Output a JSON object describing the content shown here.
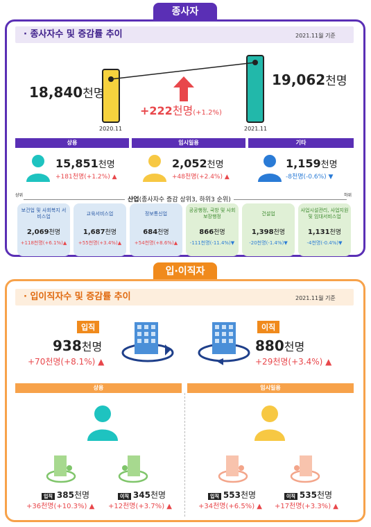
{
  "top": {
    "tab": "종사자",
    "title": "종사자수 및 증감률 추이",
    "asof": "2021.11월 기준",
    "left_value": "18,840",
    "right_value": "19,062",
    "unit": "천명",
    "left_year": "2020.11",
    "right_year": "2021.11",
    "change_value": "+222",
    "change_pct": "(+1.2%)",
    "groups": [
      {
        "label": "상용",
        "value": "15,851",
        "change": "+181천명(+1.2%)",
        "color": "#1ec3c0"
      },
      {
        "label": "임시일용",
        "value": "2,052",
        "change": "+48천명(+2.4%)",
        "color": "#f7c843"
      },
      {
        "label": "기타",
        "value": "1,159",
        "change": "-8천명(-0.6%)",
        "color": "#2a7bd6"
      }
    ],
    "industry_title": "산업",
    "industry_sub": "(종사자수 증감 상위3, 하위3 순위)",
    "rank_high": "상위",
    "rank_low": "하위",
    "industries": [
      {
        "name": "보건업 및 사회복지 서비스업",
        "value": "2,069",
        "change": "+118천명(+6.1%)",
        "dir": "up"
      },
      {
        "name": "교육서비스업",
        "value": "1,687",
        "change": "+55천명(+3.4%)",
        "dir": "up"
      },
      {
        "name": "정보통신업",
        "value": "684",
        "change": "+54천명(+8.6%)",
        "dir": "up"
      },
      {
        "name": "공공행정, 국방 및 사회보장행정",
        "value": "866",
        "change": "-111천명(-11.4%)",
        "dir": "down"
      },
      {
        "name": "건설업",
        "value": "1,398",
        "change": "-20천명(-1.4%)",
        "dir": "down"
      },
      {
        "name": "사업시설관리, 사업지원 및 임대서비스업",
        "value": "1,131",
        "change": "-4천명(-0.4%)",
        "dir": "down"
      }
    ]
  },
  "bottom": {
    "tab": "입·이직자",
    "title": "입이직자수 및 증감률 추이",
    "asof": "2021.11월 기준",
    "hire_label": "입직",
    "hire_value": "938",
    "hire_change": "+70천명(+8.1%)",
    "sep_label": "이직",
    "sep_value": "880",
    "sep_change": "+29천명(+3.4%)",
    "unit": "천명",
    "regular": {
      "label": "상용",
      "hire_tag": "입직",
      "hire_value": "385",
      "hire_change": "+36천명(+10.3%)",
      "sep_tag": "이직",
      "sep_value": "345",
      "sep_change": "+12천명(+3.7%)"
    },
    "temp": {
      "label": "임시일용",
      "hire_tag": "입직",
      "hire_value": "553",
      "hire_change": "+34천명(+6.5%)",
      "sep_tag": "이직",
      "sep_value": "535",
      "sep_change": "+17천명(+3.3%)"
    }
  }
}
